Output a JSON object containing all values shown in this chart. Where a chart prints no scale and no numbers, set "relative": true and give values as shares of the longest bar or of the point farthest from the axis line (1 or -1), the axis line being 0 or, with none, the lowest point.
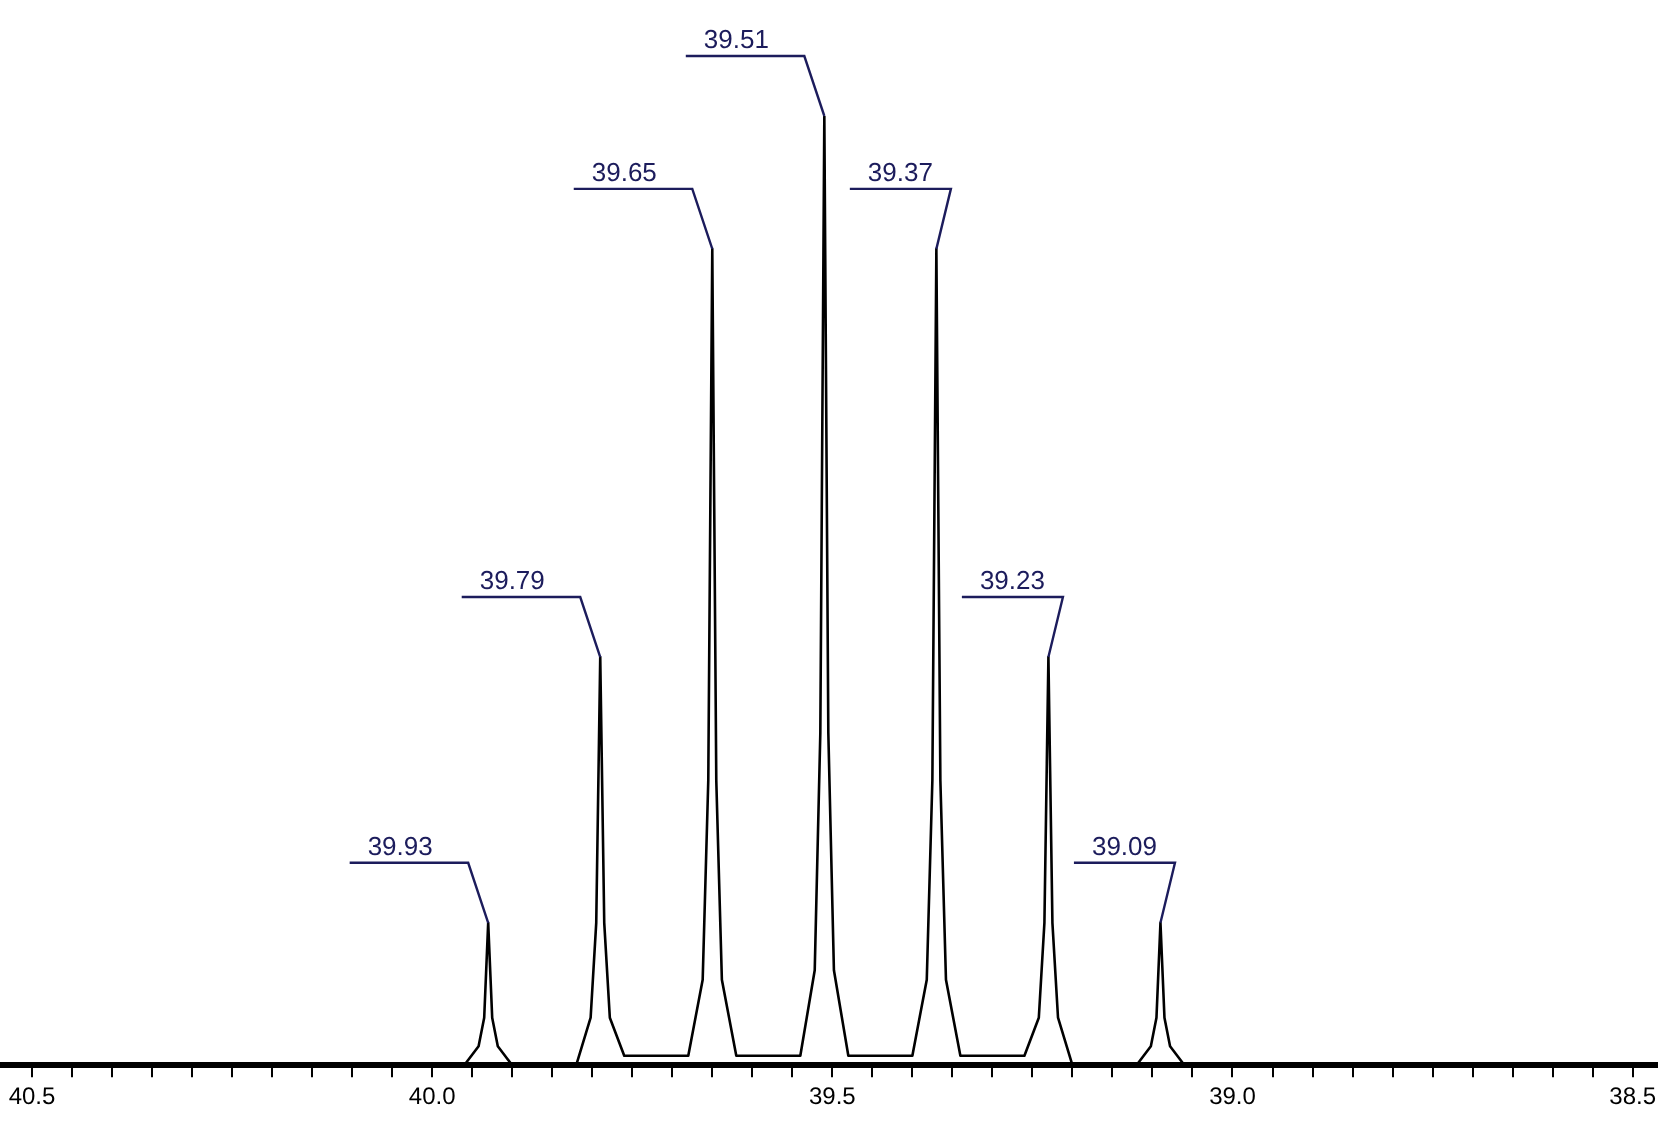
{
  "chart_data": {
    "type": "line",
    "relative": true,
    "xlim": [
      40.54,
      38.47
    ],
    "xticks": [
      40.5,
      {
        "value": 40.45,
        "label": null
      },
      {
        "value": 40.4,
        "label": null
      },
      {
        "value": 40.35,
        "label": null
      },
      {
        "value": 40.3,
        "label": null
      },
      {
        "value": 40.25,
        "label": null
      },
      {
        "value": 40.2,
        "label": null
      },
      {
        "value": 40.15,
        "label": null
      },
      {
        "value": 40.1,
        "label": null
      },
      {
        "value": 40.05,
        "label": null
      },
      {
        "value": 40.0,
        "label": "40.0"
      },
      {
        "value": 39.95,
        "label": null
      },
      {
        "value": 39.9,
        "label": null
      },
      {
        "value": 39.85,
        "label": null
      },
      {
        "value": 39.8,
        "label": null
      },
      {
        "value": 39.75,
        "label": null
      },
      {
        "value": 39.7,
        "label": null
      },
      {
        "value": 39.65,
        "label": null
      },
      {
        "value": 39.6,
        "label": null
      },
      {
        "value": 39.55,
        "label": null
      },
      39.5,
      {
        "value": 39.45,
        "label": null
      },
      {
        "value": 39.4,
        "label": null
      },
      {
        "value": 39.35,
        "label": null
      },
      {
        "value": 39.3,
        "label": null
      },
      {
        "value": 39.25,
        "label": null
      },
      {
        "value": 39.2,
        "label": null
      },
      {
        "value": 39.15,
        "label": null
      },
      {
        "value": 39.1,
        "label": null
      },
      {
        "value": 39.05,
        "label": null
      },
      {
        "value": 39.0,
        "label": "39.0"
      },
      {
        "value": 38.95,
        "label": null
      },
      {
        "value": 38.9,
        "label": null
      },
      {
        "value": 38.85,
        "label": null
      },
      {
        "value": 38.8,
        "label": null
      },
      {
        "value": 38.75,
        "label": null
      },
      {
        "value": 38.7,
        "label": null
      },
      {
        "value": 38.65,
        "label": null
      },
      {
        "value": 38.6,
        "label": null
      },
      {
        "value": 38.55,
        "label": null
      },
      38.5
    ],
    "series": [
      {
        "color": "#000000",
        "x": [
          40.54,
          39.96,
          39.942,
          39.935,
          39.93,
          39.925,
          39.918,
          39.9,
          39.82,
          39.802,
          39.795,
          39.79,
          39.785,
          39.778,
          39.76,
          39.68,
          39.662,
          39.655,
          39.65,
          39.645,
          39.638,
          39.62,
          39.54,
          39.522,
          39.515,
          39.51,
          39.505,
          39.498,
          39.48,
          39.4,
          39.382,
          39.375,
          39.37,
          39.365,
          39.358,
          39.34,
          39.26,
          39.242,
          39.235,
          39.23,
          39.225,
          39.218,
          39.2,
          39.12,
          39.102,
          39.095,
          39.09,
          39.085,
          39.078,
          39.06,
          38.47
        ],
        "values": [
          0,
          0,
          0.02,
          0.05,
          0.15,
          0.05,
          0.02,
          0,
          0,
          0.05,
          0.15,
          0.43,
          0.15,
          0.05,
          0.01,
          0.01,
          0.09,
          0.3,
          0.86,
          0.3,
          0.09,
          0.01,
          0.01,
          0.1,
          0.35,
          1,
          0.35,
          0.1,
          0.01,
          0.01,
          0.09,
          0.3,
          0.86,
          0.3,
          0.09,
          0.01,
          0.01,
          0.05,
          0.15,
          0.43,
          0.15,
          0.05,
          0,
          0,
          0.02,
          0.05,
          0.15,
          0.05,
          0.02,
          0,
          0
        ]
      }
    ],
    "annotations": [
      {
        "text": "39.93",
        "x": 39.93,
        "y": 0.15
      },
      {
        "text": "39.79",
        "x": 39.79,
        "y": 0.43
      },
      {
        "text": "39.65",
        "x": 39.65,
        "y": 0.86
      },
      {
        "text": "39.51",
        "x": 39.51,
        "y": 1
      },
      {
        "text": "39.37",
        "x": 39.37,
        "y": 0.86
      },
      {
        "text": "39.23",
        "x": 39.23,
        "y": 0.43
      },
      {
        "text": "39.09",
        "x": 39.09,
        "y": 0.15
      }
    ]
  }
}
